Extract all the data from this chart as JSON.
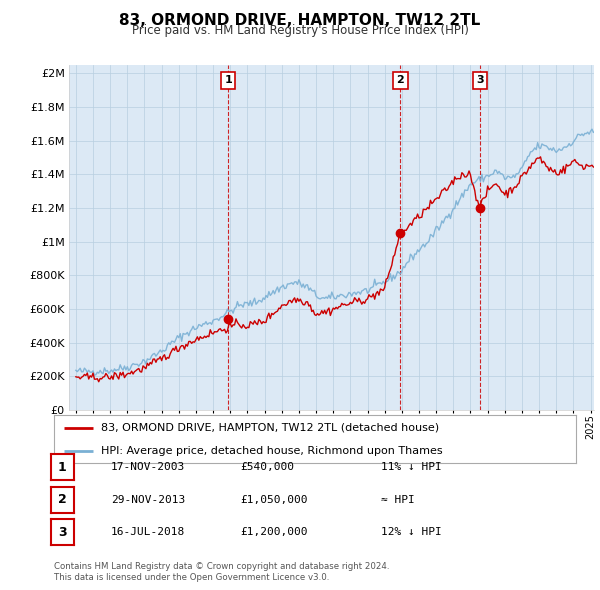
{
  "title": "83, ORMOND DRIVE, HAMPTON, TW12 2TL",
  "subtitle": "Price paid vs. HM Land Registry's House Price Index (HPI)",
  "ylabel_ticks": [
    "£0",
    "£200K",
    "£400K",
    "£600K",
    "£800K",
    "£1M",
    "£1.2M",
    "£1.4M",
    "£1.6M",
    "£1.8M",
    "£2M"
  ],
  "ytick_values": [
    0,
    200000,
    400000,
    600000,
    800000,
    1000000,
    1200000,
    1400000,
    1600000,
    1800000,
    2000000
  ],
  "ylim": [
    0,
    2050000
  ],
  "xlim_start": 1994.6,
  "xlim_end": 2025.2,
  "red_color": "#cc0000",
  "blue_color": "#7ab0d4",
  "purchase_dates": [
    2003.88,
    2013.91,
    2018.54
  ],
  "purchase_values": [
    540000,
    1050000,
    1200000
  ],
  "purchase_labels": [
    "1",
    "2",
    "3"
  ],
  "vline_dates": [
    2003.88,
    2013.91,
    2018.54
  ],
  "legend_red": "83, ORMOND DRIVE, HAMPTON, TW12 2TL (detached house)",
  "legend_blue": "HPI: Average price, detached house, Richmond upon Thames",
  "table_rows": [
    {
      "num": "1",
      "date": "17-NOV-2003",
      "price": "£540,000",
      "hpi": "11% ↓ HPI"
    },
    {
      "num": "2",
      "date": "29-NOV-2013",
      "price": "£1,050,000",
      "hpi": "≈ HPI"
    },
    {
      "num": "3",
      "date": "16-JUL-2018",
      "price": "£1,200,000",
      "hpi": "12% ↓ HPI"
    }
  ],
  "footnote1": "Contains HM Land Registry data © Crown copyright and database right 2024.",
  "footnote2": "This data is licensed under the Open Government Licence v3.0.",
  "background_color": "#ffffff",
  "plot_bg_color": "#dce9f5",
  "grid_color": "#b8cfe0"
}
